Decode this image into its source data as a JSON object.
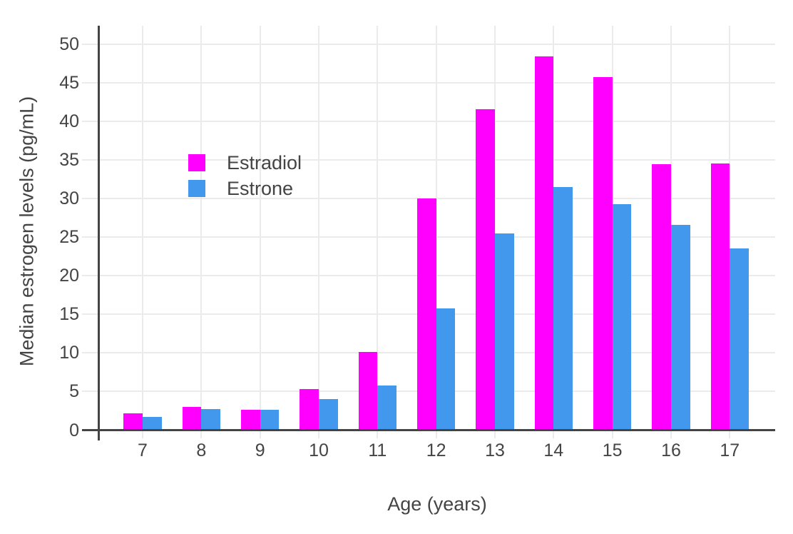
{
  "chart_data": {
    "type": "bar",
    "title": "",
    "xlabel": "Age (years)",
    "ylabel": "Median estrogen levels (pg/mL)",
    "categories": [
      "7",
      "8",
      "9",
      "10",
      "11",
      "12",
      "13",
      "14",
      "15",
      "16",
      "17"
    ],
    "series": [
      {
        "name": "Estradiol",
        "color": "#FF00FF",
        "values": [
          2.2,
          3.0,
          2.6,
          5.3,
          10.1,
          30.0,
          41.6,
          48.5,
          45.8,
          34.5,
          34.6
        ]
      },
      {
        "name": "Estrone",
        "color": "#4298EC",
        "values": [
          1.7,
          2.7,
          2.6,
          4.0,
          5.8,
          15.8,
          25.5,
          31.5,
          29.3,
          26.6,
          23.6
        ]
      }
    ],
    "ylim": [
      0,
      52.5
    ],
    "yticks": [
      "0",
      "5",
      "10",
      "15",
      "20",
      "25",
      "30",
      "35",
      "40",
      "45",
      "50"
    ],
    "grid": true,
    "legend_position": "inside-top-left",
    "colors": {
      "axis_text": "#444444",
      "axis_line": "#444444",
      "grid_line": "#EBEBEB",
      "background": "#FFFFFF"
    }
  }
}
